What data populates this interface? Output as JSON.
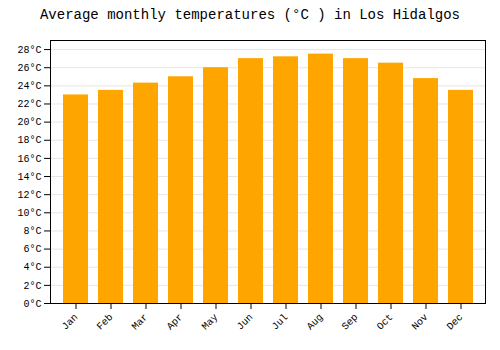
{
  "chart_data": {
    "type": "bar",
    "title": "Average monthly temperatures (°C ) in Los Hidalgos",
    "categories": [
      "Jan",
      "Feb",
      "Mar",
      "Apr",
      "May",
      "Jun",
      "Jul",
      "Aug",
      "Sep",
      "Oct",
      "Nov",
      "Dec"
    ],
    "values": [
      23.0,
      23.5,
      24.3,
      25.0,
      26.0,
      27.0,
      27.2,
      27.5,
      27.0,
      26.5,
      24.8,
      23.5
    ],
    "color": "#FFA500",
    "ylim": [
      0,
      29
    ],
    "yticks": [
      {
        "value": 0,
        "label": "0°C"
      },
      {
        "value": 2,
        "label": "2°C"
      },
      {
        "value": 4,
        "label": "4°C"
      },
      {
        "value": 6,
        "label": "6°C"
      },
      {
        "value": 8,
        "label": "8°C"
      },
      {
        "value": 10,
        "label": "10°C"
      },
      {
        "value": 12,
        "label": "12°C"
      },
      {
        "value": 14,
        "label": "14°C"
      },
      {
        "value": 16,
        "label": "16°C"
      },
      {
        "value": 18,
        "label": "18°C"
      },
      {
        "value": 20,
        "label": "20°C"
      },
      {
        "value": 22,
        "label": "22°C"
      },
      {
        "value": 24,
        "label": "24°C"
      },
      {
        "value": 26,
        "label": "26°C"
      },
      {
        "value": 28,
        "label": "28°C"
      }
    ],
    "grid": true
  }
}
